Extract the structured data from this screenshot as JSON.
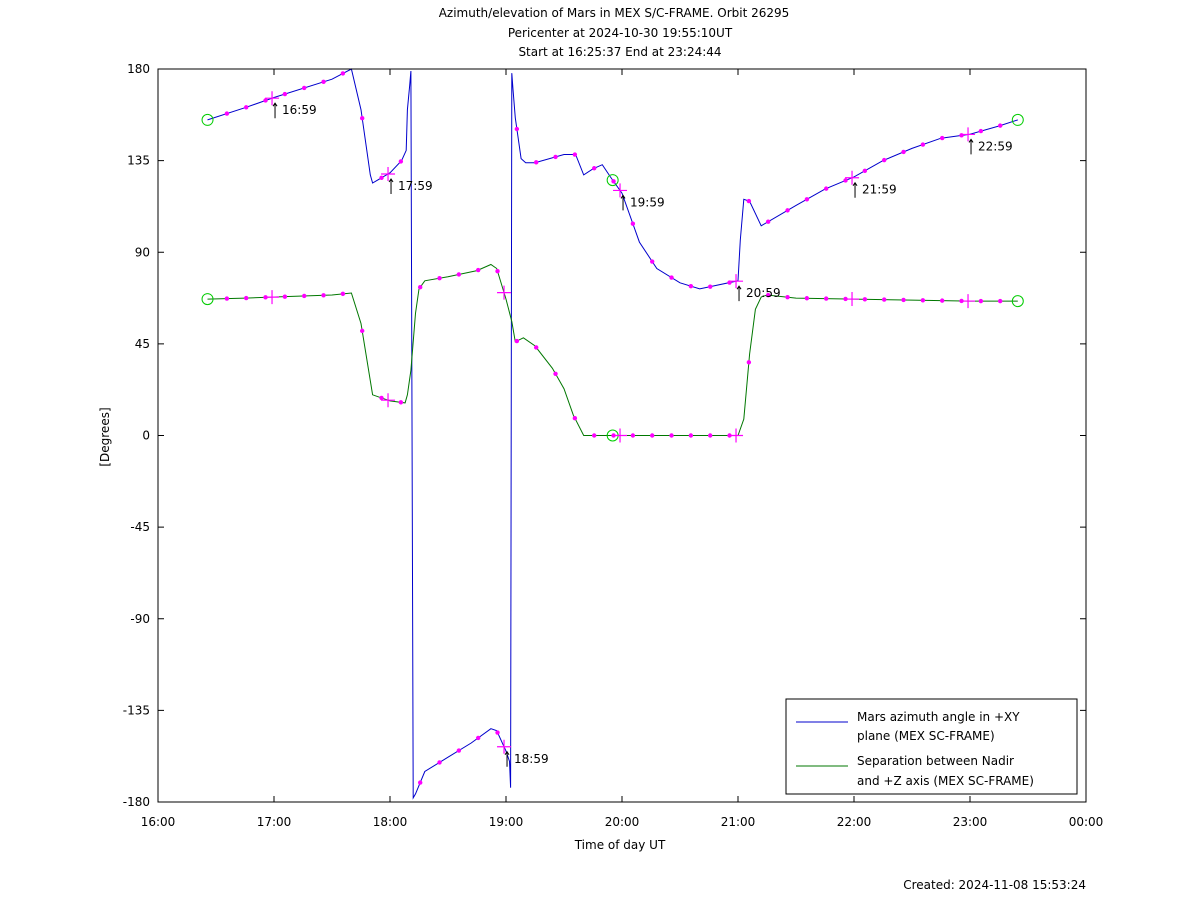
{
  "chart_data": {
    "type": "line",
    "title": [
      "Azimuth/elevation of Mars in MEX S/C-FRAME.  Orbit 26295",
      "Pericenter at 2024-10-30 19:55:10UT",
      "Start at 16:25:37 End at 23:24:44"
    ],
    "xlabel": "Time of day UT",
    "ylabel": "[Degrees]",
    "xlim_hours": [
      16,
      24
    ],
    "ylim": [
      -180,
      180
    ],
    "x_ticks": [
      {
        "h": 16,
        "label": "16:00"
      },
      {
        "h": 17,
        "label": "17:00"
      },
      {
        "h": 18,
        "label": "18:00"
      },
      {
        "h": 19,
        "label": "19:00"
      },
      {
        "h": 20,
        "label": "20:00"
      },
      {
        "h": 21,
        "label": "21:00"
      },
      {
        "h": 22,
        "label": "22:00"
      },
      {
        "h": 23,
        "label": "23:00"
      },
      {
        "h": 24,
        "label": "00:00"
      }
    ],
    "y_ticks": [
      {
        "v": 180,
        "label": "180"
      },
      {
        "v": 135,
        "label": "135"
      },
      {
        "v": 90,
        "label": "90"
      },
      {
        "v": 45,
        "label": "45"
      },
      {
        "v": 0,
        "label": "0"
      },
      {
        "v": -45,
        "label": "-45"
      },
      {
        "v": -90,
        "label": "-90"
      },
      {
        "v": -135,
        "label": "-135"
      },
      {
        "v": -180,
        "label": "-180"
      }
    ],
    "grid": false,
    "legend_position": "bottom-right",
    "series": [
      {
        "name": "Mars azimuth angle in +XY plane (MEX SC-FRAME)",
        "legend_lines": [
          "Mars azimuth angle in +XY",
          "plane (MEX SC-FRAME)"
        ],
        "color": "#0000cc",
        "x_hours": [
          16.427,
          16.75,
          17.0,
          17.5,
          17.667,
          17.75,
          17.83,
          17.85,
          18.0,
          18.1,
          18.14,
          18.15,
          18.17,
          18.18,
          18.2,
          18.22,
          18.3,
          18.5,
          18.7,
          18.87,
          18.92,
          19.0,
          19.03,
          19.04,
          19.05,
          19.06,
          19.08,
          19.13,
          19.17,
          19.25,
          19.5,
          19.6,
          19.67,
          19.75,
          19.83,
          19.9,
          20.0,
          20.15,
          20.3,
          20.5,
          20.67,
          21.0,
          21.02,
          21.05,
          21.1,
          21.2,
          21.5,
          21.75,
          22.0,
          22.25,
          22.5,
          22.75,
          23.0,
          23.25,
          23.412
        ],
        "y": [
          155,
          161,
          166,
          175,
          180,
          160,
          128,
          124,
          129,
          135,
          140,
          160,
          172,
          179,
          -178,
          -176,
          -165,
          -158,
          -151,
          -144,
          -145,
          -155,
          -160,
          -173,
          178,
          170,
          156,
          136,
          134,
          134,
          138,
          138,
          128,
          131,
          133,
          127,
          119,
          95,
          82,
          75,
          72,
          76,
          96,
          116,
          115,
          103,
          113,
          121,
          127,
          135,
          141,
          146,
          148,
          152,
          155
        ]
      },
      {
        "name": "Separation between Nadir and +Z axis (MEX SC-FRAME)",
        "legend_lines": [
          "Separation between Nadir",
          "and +Z axis (MEX SC-FRAME)"
        ],
        "color": "#007700",
        "x_hours": [
          16.427,
          16.75,
          17.0,
          17.5,
          17.667,
          17.75,
          17.85,
          18.0,
          18.13,
          18.15,
          18.18,
          18.22,
          18.25,
          18.3,
          18.5,
          18.75,
          18.87,
          18.92,
          19.0,
          19.05,
          19.08,
          19.15,
          19.25,
          19.4,
          19.5,
          19.58,
          19.67,
          19.8,
          20.0,
          20.5,
          21.0,
          21.05,
          21.1,
          21.15,
          21.2,
          21.25,
          21.5,
          22.0,
          22.5,
          23.0,
          23.412
        ],
        "y": [
          67,
          67.5,
          68,
          69,
          70,
          55,
          20,
          17,
          16,
          20,
          32,
          60,
          72,
          76,
          78,
          81,
          84,
          82,
          67,
          56,
          46,
          48,
          44,
          33,
          23,
          10,
          0,
          0,
          0,
          0,
          0,
          8,
          40,
          62,
          68,
          69,
          67.5,
          67,
          66.5,
          66,
          66
        ]
      }
    ],
    "annotations": [
      {
        "h": 16.983,
        "label": "16:59"
      },
      {
        "h": 17.983,
        "label": "17:59"
      },
      {
        "h": 18.983,
        "label": "18:59"
      },
      {
        "h": 19.983,
        "label": "19:59"
      },
      {
        "h": 20.983,
        "label": "20:59"
      },
      {
        "h": 21.983,
        "label": "21:59"
      },
      {
        "h": 22.983,
        "label": "22:59"
      }
    ],
    "footer": "Created: 2024-11-08 15:53:24"
  }
}
